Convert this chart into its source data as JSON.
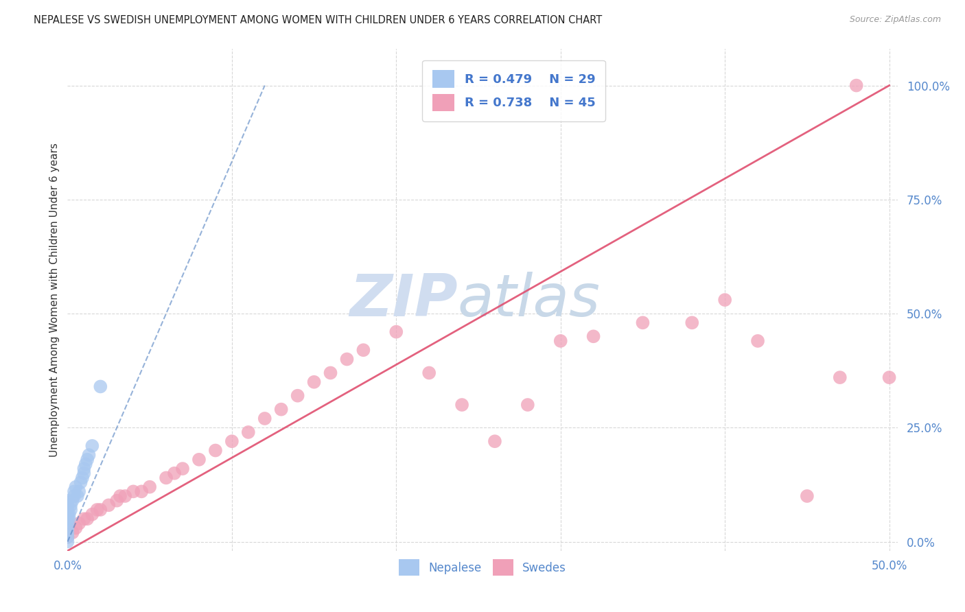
{
  "title": "NEPALESE VS SWEDISH UNEMPLOYMENT AMONG WOMEN WITH CHILDREN UNDER 6 YEARS CORRELATION CHART",
  "source": "Source: ZipAtlas.com",
  "ylabel": "Unemployment Among Women with Children Under 6 years",
  "xlim": [
    0,
    0.505
  ],
  "ylim": [
    -0.02,
    1.08
  ],
  "x_ticks": [
    0.0,
    0.1,
    0.2,
    0.3,
    0.4,
    0.5
  ],
  "x_tick_labels": [
    "0.0%",
    "",
    "",
    "",
    "",
    "50.0%"
  ],
  "y_ticks_right": [
    0.0,
    0.25,
    0.5,
    0.75,
    1.0
  ],
  "y_tick_labels_right": [
    "0.0%",
    "25.0%",
    "50.0%",
    "75.0%",
    "100.0%"
  ],
  "nepalese_R": 0.479,
  "nepalese_N": 29,
  "swedes_R": 0.738,
  "swedes_N": 45,
  "nepalese_color": "#a8c8f0",
  "swedes_color": "#f0a0b8",
  "nepalese_line_color": "#5080c0",
  "swedes_line_color": "#e05070",
  "watermark_zip_color": "#d0ddf0",
  "watermark_atlas_color": "#c8d8e8",
  "background_color": "#ffffff",
  "grid_color": "#d8d8d8",
  "nepalese_x": [
    0.0,
    0.0,
    0.0,
    0.0,
    0.0,
    0.0,
    0.0,
    0.0,
    0.0,
    0.0,
    0.001,
    0.001,
    0.002,
    0.002,
    0.003,
    0.004,
    0.004,
    0.005,
    0.006,
    0.007,
    0.008,
    0.009,
    0.01,
    0.01,
    0.011,
    0.012,
    0.013,
    0.015,
    0.02
  ],
  "nepalese_y": [
    0.0,
    0.01,
    0.02,
    0.03,
    0.04,
    0.05,
    0.06,
    0.07,
    0.08,
    0.09,
    0.05,
    0.06,
    0.07,
    0.08,
    0.09,
    0.1,
    0.11,
    0.12,
    0.1,
    0.11,
    0.13,
    0.14,
    0.15,
    0.16,
    0.17,
    0.18,
    0.19,
    0.21,
    0.34
  ],
  "swedes_x": [
    0.0,
    0.003,
    0.005,
    0.007,
    0.01,
    0.012,
    0.015,
    0.018,
    0.02,
    0.025,
    0.03,
    0.032,
    0.035,
    0.04,
    0.045,
    0.05,
    0.06,
    0.065,
    0.07,
    0.08,
    0.09,
    0.1,
    0.11,
    0.12,
    0.13,
    0.14,
    0.15,
    0.16,
    0.17,
    0.18,
    0.2,
    0.22,
    0.24,
    0.26,
    0.28,
    0.3,
    0.32,
    0.35,
    0.38,
    0.4,
    0.42,
    0.45,
    0.47,
    0.48,
    0.5
  ],
  "swedes_y": [
    0.01,
    0.02,
    0.03,
    0.04,
    0.05,
    0.05,
    0.06,
    0.07,
    0.07,
    0.08,
    0.09,
    0.1,
    0.1,
    0.11,
    0.11,
    0.12,
    0.14,
    0.15,
    0.16,
    0.18,
    0.2,
    0.22,
    0.24,
    0.27,
    0.29,
    0.32,
    0.35,
    0.37,
    0.4,
    0.42,
    0.46,
    0.37,
    0.3,
    0.22,
    0.3,
    0.44,
    0.45,
    0.48,
    0.48,
    0.53,
    0.44,
    0.1,
    0.36,
    1.0,
    0.36
  ],
  "nepalese_line_x": [
    0.0,
    0.12
  ],
  "nepalese_line_y": [
    0.0,
    1.0
  ],
  "swedes_line_x": [
    0.0,
    0.5
  ],
  "swedes_line_y": [
    -0.02,
    1.0
  ]
}
